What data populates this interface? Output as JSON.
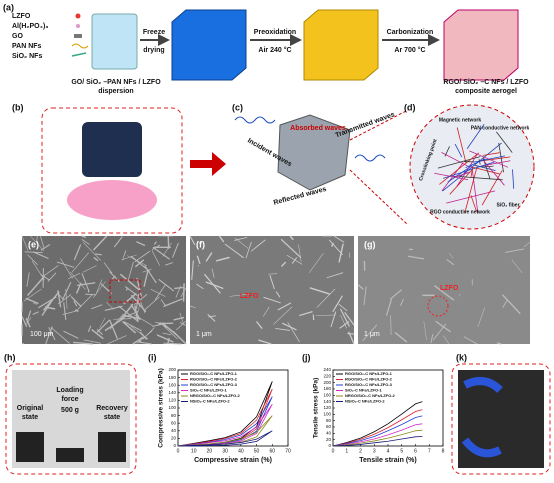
{
  "figure": {
    "a": {
      "label": "(a)",
      "materials": [
        "LZFO",
        "Al(H₂PO₄)₃",
        "GO",
        "PAN NFs",
        "SiO₂ NFs"
      ],
      "step1": [
        "Freeze",
        "drying"
      ],
      "step2": [
        "Preoxidation",
        "Air 240 °C"
      ],
      "step3": [
        "Carbonization",
        "Ar 700 °C"
      ],
      "start": [
        "GO/ SiO₂ –PAN NFs / LZFO",
        "dispersion"
      ],
      "end": [
        "RGO/ SiO₂ –C NFs / LZFO",
        "composite aerogel"
      ]
    },
    "b": {
      "label": "(b)"
    },
    "c": {
      "label": "(c)",
      "waves": [
        "Incident waves",
        "Absorbed waves",
        "Transmitted waves",
        "Reflected waves"
      ]
    },
    "d": {
      "label": "(d)",
      "notes": [
        "Magnetic network",
        "PAN conductive network",
        "Crosslinking point",
        "RGO conductive network",
        "SiO₂ fiber"
      ]
    },
    "e": {
      "label": "(e)",
      "scale": "100 μm"
    },
    "f": {
      "label": "(f)",
      "scale": "1 μm",
      "marker": "LZFO"
    },
    "g": {
      "label": "(g)",
      "scale": "1 μm",
      "marker": "LZFO"
    },
    "h": {
      "label": "(h)",
      "original": [
        "Original",
        "state"
      ],
      "load": [
        "Loading",
        "force",
        "500 g"
      ],
      "recovery": [
        "Recovery",
        "state"
      ]
    },
    "i": {
      "label": "(i)"
    },
    "j": {
      "label": "(j)"
    },
    "k": {
      "label": "(k)"
    }
  },
  "chart_data": [
    {
      "type": "line",
      "x_label": "Compressive strain (%)",
      "y_label": "Compressive stress (kPa)",
      "x": [
        0,
        10,
        20,
        30,
        40,
        50,
        60,
        50,
        40,
        30,
        20,
        10,
        0
      ],
      "xlim": [
        0,
        70
      ],
      "xticks": [
        0,
        10,
        20,
        30,
        40,
        50,
        60,
        70
      ],
      "ylim": [
        0,
        200
      ],
      "yticks": [
        0,
        20,
        40,
        60,
        80,
        100,
        120,
        140,
        160,
        180,
        200
      ],
      "series": [
        {
          "name": "RGO/SiO₂-C NFs/LZFO-1",
          "color": "#000000",
          "values": [
            0,
            7,
            14,
            22,
            37,
            77,
            170,
            51,
            20,
            10,
            5,
            2,
            0
          ]
        },
        {
          "name": "RGO/SiO₂-C NFs/LZFO-2",
          "color": "#e0202a",
          "values": [
            0,
            6,
            12,
            20,
            33,
            68,
            150,
            45,
            18,
            9,
            5,
            2,
            0
          ]
        },
        {
          "name": "RGO/SiO₂-C NFs/LZFO-3",
          "color": "#1f3fd1",
          "values": [
            0,
            5,
            10,
            17,
            29,
            59,
            130,
            39,
            16,
            8,
            4,
            1,
            0
          ]
        },
        {
          "name": "SiO₂-C NFs/LZFO-1",
          "color": "#d22bc8",
          "values": [
            0,
            4,
            9,
            14,
            24,
            50,
            110,
            33,
            13,
            7,
            3,
            1,
            0
          ]
        },
        {
          "name": "NRGO/SiO₂-C NFs/LZFO-2",
          "color": "#8a8a1a",
          "values": [
            0,
            3,
            6,
            10,
            18,
            36,
            80,
            24,
            10,
            5,
            2,
            1,
            0
          ]
        },
        {
          "name": "NSiO₂-C NFs/LZFO-2",
          "color": "#1a1a7a",
          "values": [
            0,
            2,
            3,
            5,
            9,
            18,
            40,
            12,
            5,
            2,
            1,
            0,
            0
          ]
        }
      ]
    },
    {
      "type": "line",
      "x_label": "Tensile strain (%)",
      "y_label": "Tensile stress (kPa)",
      "x": [
        0,
        1,
        2,
        3,
        4,
        5,
        6,
        6.5
      ],
      "xlim": [
        0,
        8
      ],
      "xticks": [
        0,
        1,
        2,
        3,
        4,
        5,
        6,
        7,
        8
      ],
      "ylim": [
        0,
        240
      ],
      "yticks": [
        0,
        20,
        40,
        60,
        80,
        100,
        120,
        140,
        160,
        180,
        200,
        220,
        240
      ],
      "series": [
        {
          "name": "RGO/SiO₂-C NFs/LZFO-1",
          "color": "#000000",
          "values": [
            0,
            11,
            25,
            45,
            70,
            101,
            133,
            140
          ]
        },
        {
          "name": "RGO/SiO₂-C NFs/LZFO-2",
          "color": "#e0202a",
          "values": [
            0,
            9,
            21,
            37,
            58,
            83,
            109,
            115
          ]
        },
        {
          "name": "RGO/SiO₂-C NFs/LZFO-3",
          "color": "#1f3fd1",
          "values": [
            0,
            8,
            17,
            30,
            48,
            68,
            90,
            95
          ]
        },
        {
          "name": "SiO₂-C NFs/LZFO-1",
          "color": "#d22bc8",
          "values": [
            0,
            6,
            13,
            22,
            35,
            50,
            67,
            70
          ]
        },
        {
          "name": "NRGO/SiO₂-C NFs/LZFO-2",
          "color": "#8a8a1a",
          "values": [
            0,
            4,
            9,
            16,
            25,
            36,
            48,
            50
          ]
        },
        {
          "name": "NSiO₂-C NFs/LZFO-2",
          "color": "#1a1a7a",
          "values": [
            0,
            2,
            5,
            10,
            15,
            22,
            29,
            30
          ]
        }
      ]
    }
  ]
}
